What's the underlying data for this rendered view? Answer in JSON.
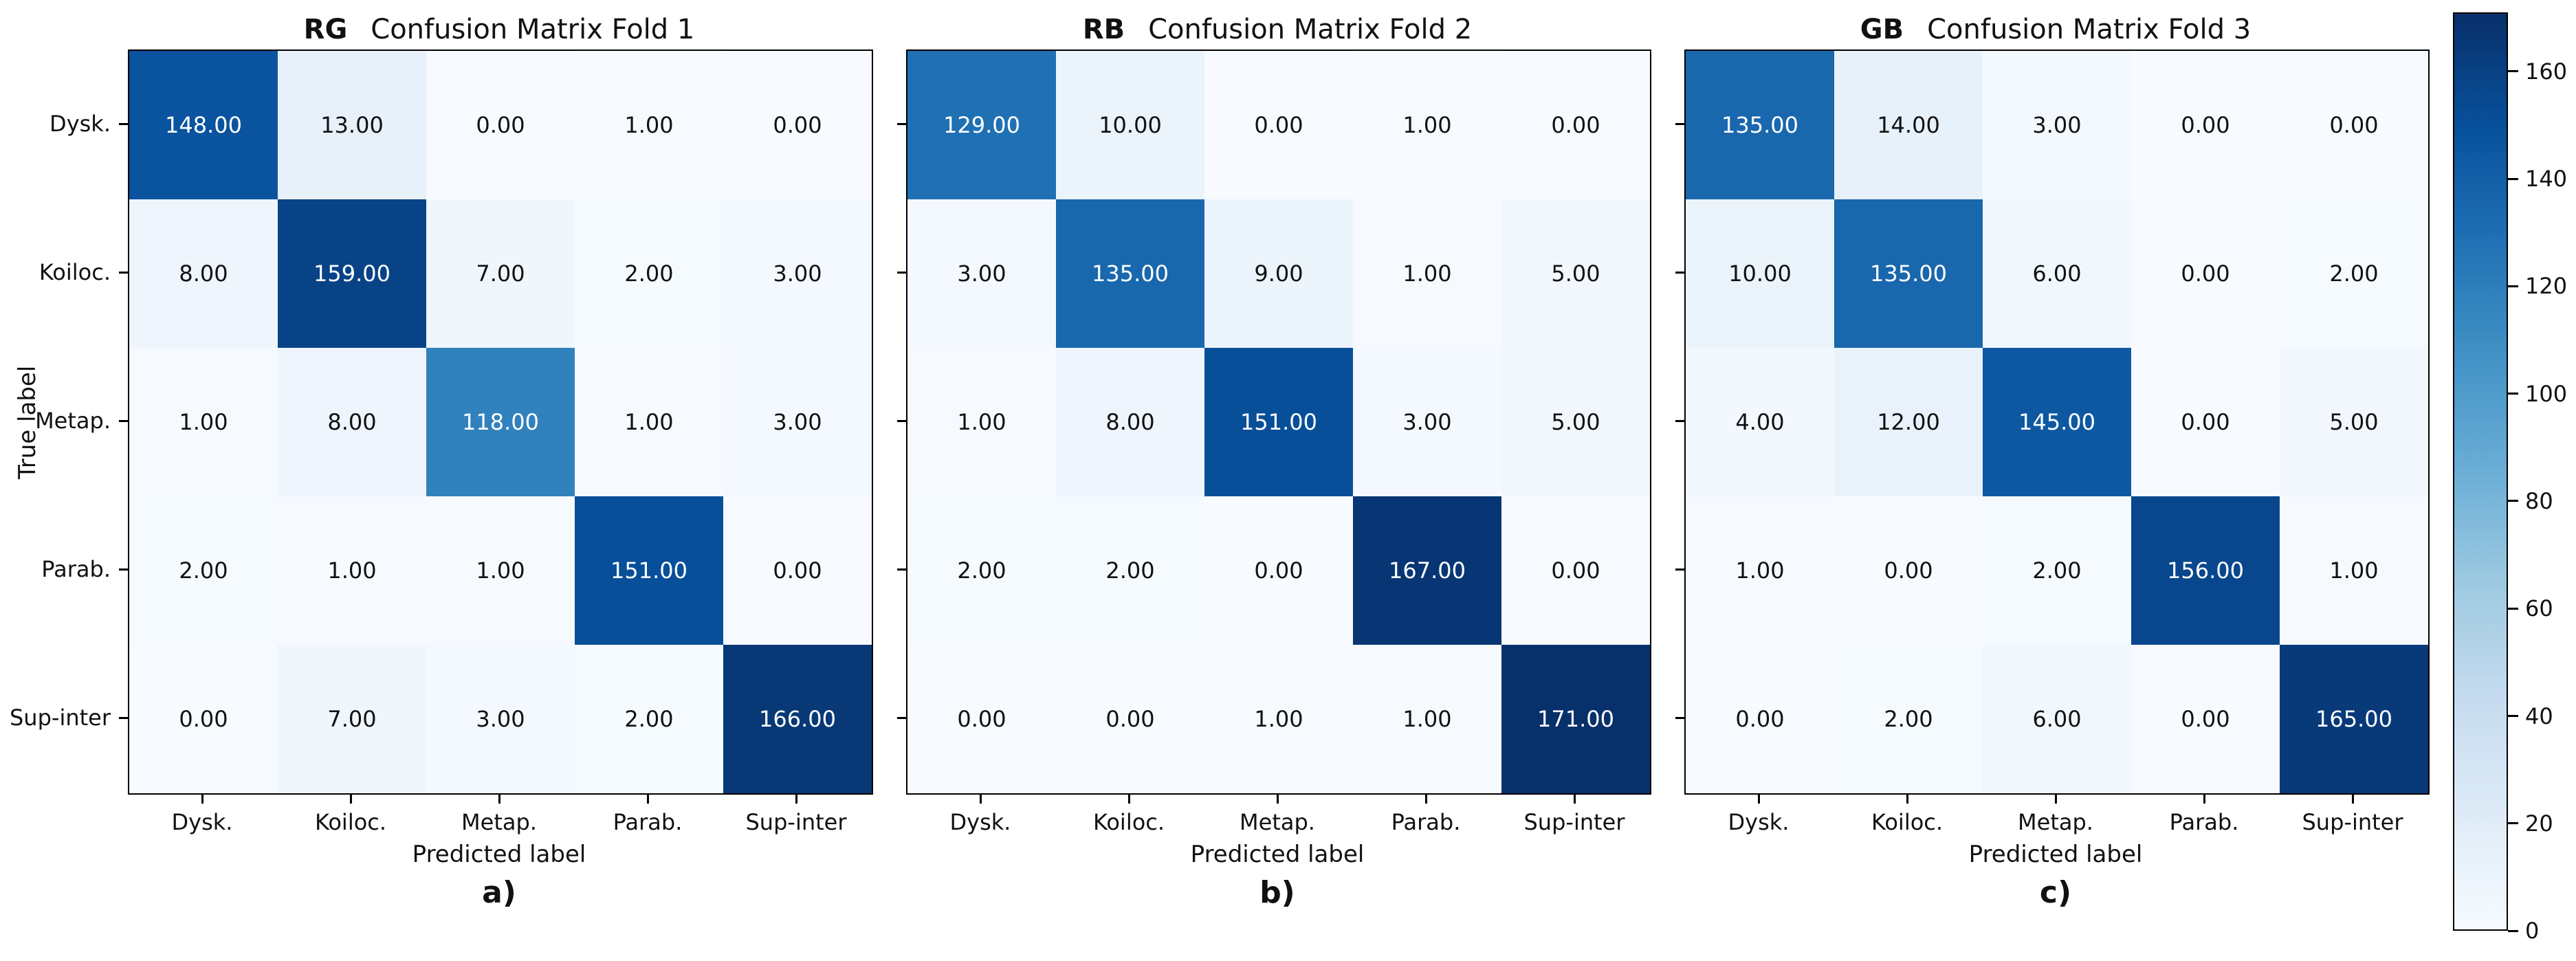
{
  "figure": {
    "ylabel": "True label",
    "xlabel": "Predicted label",
    "value_decimals": 2,
    "colormap": "Blues",
    "colormap_stops": [
      "#f7fbff",
      "#deebf7",
      "#c6dbef",
      "#9ecae1",
      "#6baed6",
      "#4292c6",
      "#2171b5",
      "#08519c",
      "#08306b"
    ],
    "colorbar": {
      "vmin": 0,
      "vmax": 171,
      "ticks": [
        0,
        20,
        40,
        60,
        80,
        100,
        120,
        140,
        160
      ]
    }
  },
  "chart_data": [
    {
      "type": "heatmap",
      "title_prefix": "RG",
      "title": "Confusion Matrix Fold 1",
      "caption": "a)",
      "xlabel": "Predicted label",
      "ylabel": "True label",
      "x_categories": [
        "Dysk.",
        "Koiloc.",
        "Metap.",
        "Parab.",
        "Sup-inter"
      ],
      "y_categories": [
        "Dysk.",
        "Koiloc.",
        "Metap.",
        "Parab.",
        "Sup-inter"
      ],
      "values": [
        [
          148,
          13,
          0,
          1,
          0
        ],
        [
          8,
          159,
          7,
          2,
          3
        ],
        [
          1,
          8,
          118,
          1,
          3
        ],
        [
          2,
          1,
          1,
          151,
          0
        ],
        [
          0,
          7,
          3,
          2,
          166
        ]
      ]
    },
    {
      "type": "heatmap",
      "title_prefix": "RB",
      "title": "Confusion Matrix Fold 2",
      "caption": "b)",
      "xlabel": "Predicted label",
      "x_categories": [
        "Dysk.",
        "Koiloc.",
        "Metap.",
        "Parab.",
        "Sup-inter"
      ],
      "y_categories": [
        "Dysk.",
        "Koiloc.",
        "Metap.",
        "Parab.",
        "Sup-inter"
      ],
      "values": [
        [
          129,
          10,
          0,
          1,
          0
        ],
        [
          3,
          135,
          9,
          1,
          5
        ],
        [
          1,
          8,
          151,
          3,
          5
        ],
        [
          2,
          2,
          0,
          167,
          0
        ],
        [
          0,
          0,
          1,
          1,
          171
        ]
      ]
    },
    {
      "type": "heatmap",
      "title_prefix": "GB",
      "title": "Confusion Matrix Fold 3",
      "caption": "c)",
      "xlabel": "Predicted label",
      "x_categories": [
        "Dysk.",
        "Koiloc.",
        "Metap.",
        "Parab.",
        "Sup-inter"
      ],
      "y_categories": [
        "Dysk.",
        "Koiloc.",
        "Metap.",
        "Parab.",
        "Sup-inter"
      ],
      "values": [
        [
          135,
          14,
          3,
          0,
          0
        ],
        [
          10,
          135,
          6,
          0,
          2
        ],
        [
          4,
          12,
          145,
          0,
          5
        ],
        [
          1,
          0,
          2,
          156,
          1
        ],
        [
          0,
          2,
          6,
          0,
          165
        ]
      ]
    }
  ]
}
